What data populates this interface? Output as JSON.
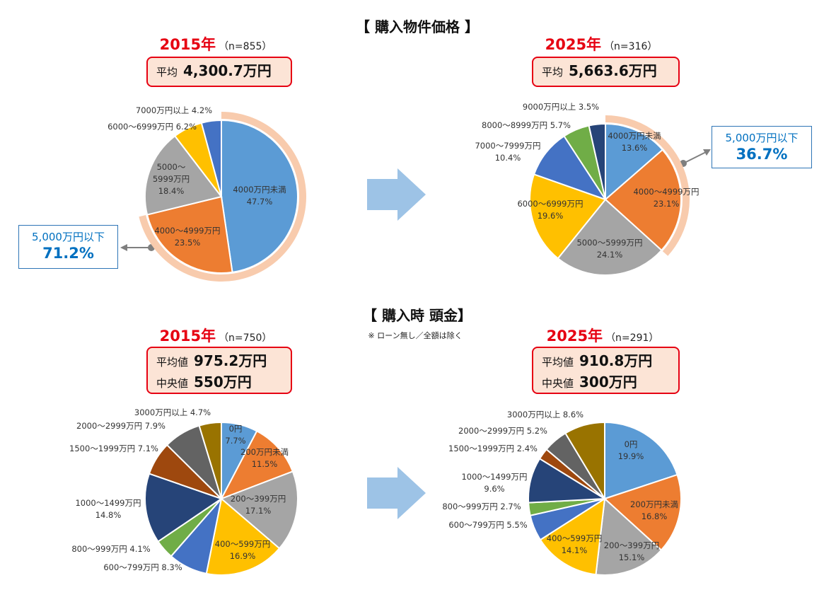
{
  "sections": {
    "price_title": "【 購入物件価格 】",
    "down_title": "【 購入時 頭金】",
    "down_note": "※ ローン無し／全額は除く"
  },
  "price_2015": {
    "year": "2015年",
    "n": "（n=855）",
    "avg_label": "平均",
    "avg_value": "4,300.7万円",
    "callout_label": "5,000万円以下",
    "callout_value": "71.2%"
  },
  "price_2025": {
    "year": "2025年",
    "n": "（n=316）",
    "avg_label": "平均",
    "avg_value": "5,663.6万円",
    "callout_label": "5,000万円以下",
    "callout_value": "36.7%"
  },
  "down_2015": {
    "year": "2015年",
    "n": "（n=750）",
    "avg_label": "平均値",
    "avg_value": "975.2万円",
    "median_label": "中央値",
    "median_value": "550万円"
  },
  "down_2025": {
    "year": "2025年",
    "n": "（n=291）",
    "avg_label": "平均値",
    "avg_value": "910.8万円",
    "median_label": "中央値",
    "median_value": "300万円"
  },
  "chart_data": [
    {
      "type": "pie",
      "title": "購入物件価格 2015年",
      "categories": [
        "4000万円未満",
        "4000～4999万円",
        "5000～5999万円",
        "6000～6999万円",
        "7000万円以上"
      ],
      "values": [
        47.7,
        23.5,
        18.4,
        6.2,
        4.2
      ],
      "colors": [
        "#5B9BD5",
        "#ED7D31",
        "#A5A5A5",
        "#FFC000",
        "#4472C4"
      ],
      "highlight": {
        "label": "5,000万円以下",
        "value": 71.2
      }
    },
    {
      "type": "pie",
      "title": "購入物件価格 2025年",
      "categories": [
        "4000万円未満",
        "4000～4999万円",
        "5000～5999万円",
        "6000～6999万円",
        "7000～7999万円",
        "8000～8999万円",
        "9000万円以上"
      ],
      "values": [
        13.6,
        23.1,
        24.1,
        19.6,
        10.4,
        5.7,
        3.5
      ],
      "colors": [
        "#5B9BD5",
        "#ED7D31",
        "#A5A5A5",
        "#FFC000",
        "#4472C4",
        "#70AD47",
        "#264478"
      ],
      "highlight": {
        "label": "5,000万円以下",
        "value": 36.7
      }
    },
    {
      "type": "pie",
      "title": "購入時 頭金 2015年",
      "categories": [
        "0円",
        "200万円未満",
        "200～399万円",
        "400～599万円",
        "600～799万円",
        "800～999万円",
        "1000～1499万円",
        "1500～1999万円",
        "2000～2999万円",
        "3000万円以上"
      ],
      "values": [
        7.7,
        11.5,
        17.1,
        16.9,
        8.3,
        4.1,
        14.8,
        7.1,
        7.9,
        4.7
      ],
      "colors": [
        "#5B9BD5",
        "#ED7D31",
        "#A5A5A5",
        "#FFC000",
        "#4472C4",
        "#70AD47",
        "#264478",
        "#9E480E",
        "#636363",
        "#997300"
      ]
    },
    {
      "type": "pie",
      "title": "購入時 頭金 2025年",
      "categories": [
        "0円",
        "200万円未満",
        "200～399万円",
        "400～599万円",
        "600～799万円",
        "800～999万円",
        "1000～1499万円",
        "1500～1999万円",
        "2000～2999万円",
        "3000万円以上"
      ],
      "values": [
        19.9,
        16.8,
        15.1,
        14.1,
        5.5,
        2.7,
        9.6,
        2.4,
        5.2,
        8.6
      ],
      "colors": [
        "#5B9BD5",
        "#ED7D31",
        "#A5A5A5",
        "#FFC000",
        "#4472C4",
        "#70AD47",
        "#264478",
        "#9E480E",
        "#636363",
        "#997300"
      ]
    }
  ]
}
